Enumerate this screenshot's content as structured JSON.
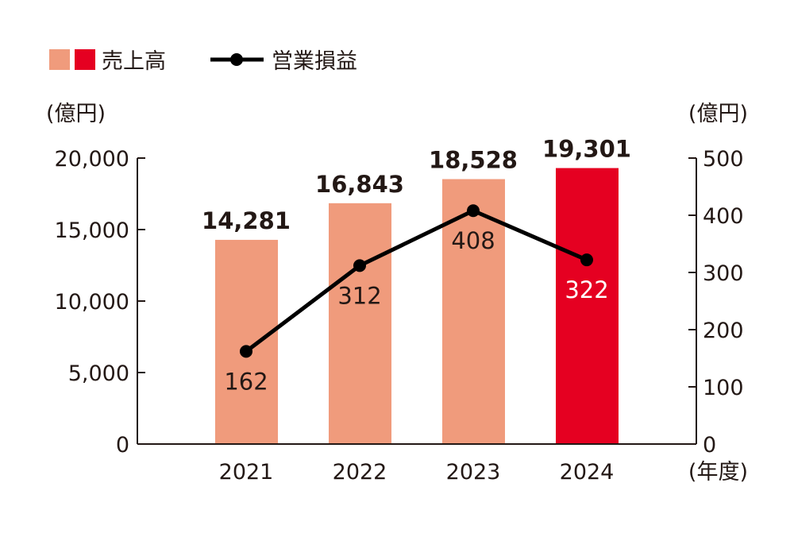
{
  "chart_data": {
    "type": "bar+line",
    "categories": [
      "2021",
      "2022",
      "2023",
      "2024"
    ],
    "x_unit": "(年度)",
    "left_axis": {
      "unit": "(億円)",
      "ylim": [
        0,
        20000
      ],
      "ticks": [
        "0",
        "5,000",
        "10,000",
        "15,000",
        "20,000"
      ]
    },
    "right_axis": {
      "unit": "(億円)",
      "ylim": [
        0,
        500
      ],
      "ticks": [
        "0",
        "100",
        "200",
        "300",
        "400",
        "500"
      ]
    },
    "series": [
      {
        "name": "売上高",
        "type": "bar",
        "axis": "left",
        "values": [
          14281,
          16843,
          18528,
          19301
        ],
        "labels": [
          "14,281",
          "16,843",
          "18,528",
          "19,301"
        ],
        "colors": [
          "#f09b7c",
          "#f09b7c",
          "#f09b7c",
          "#e50021"
        ]
      },
      {
        "name": "営業損益",
        "type": "line",
        "axis": "right",
        "values": [
          162,
          312,
          408,
          322
        ],
        "labels": [
          "162",
          "312",
          "408",
          "322"
        ],
        "color": "#000000"
      }
    ],
    "legend": {
      "placement": "top-left",
      "bar_colors": [
        "#f09b7c",
        "#e50021"
      ]
    },
    "grid": false
  }
}
